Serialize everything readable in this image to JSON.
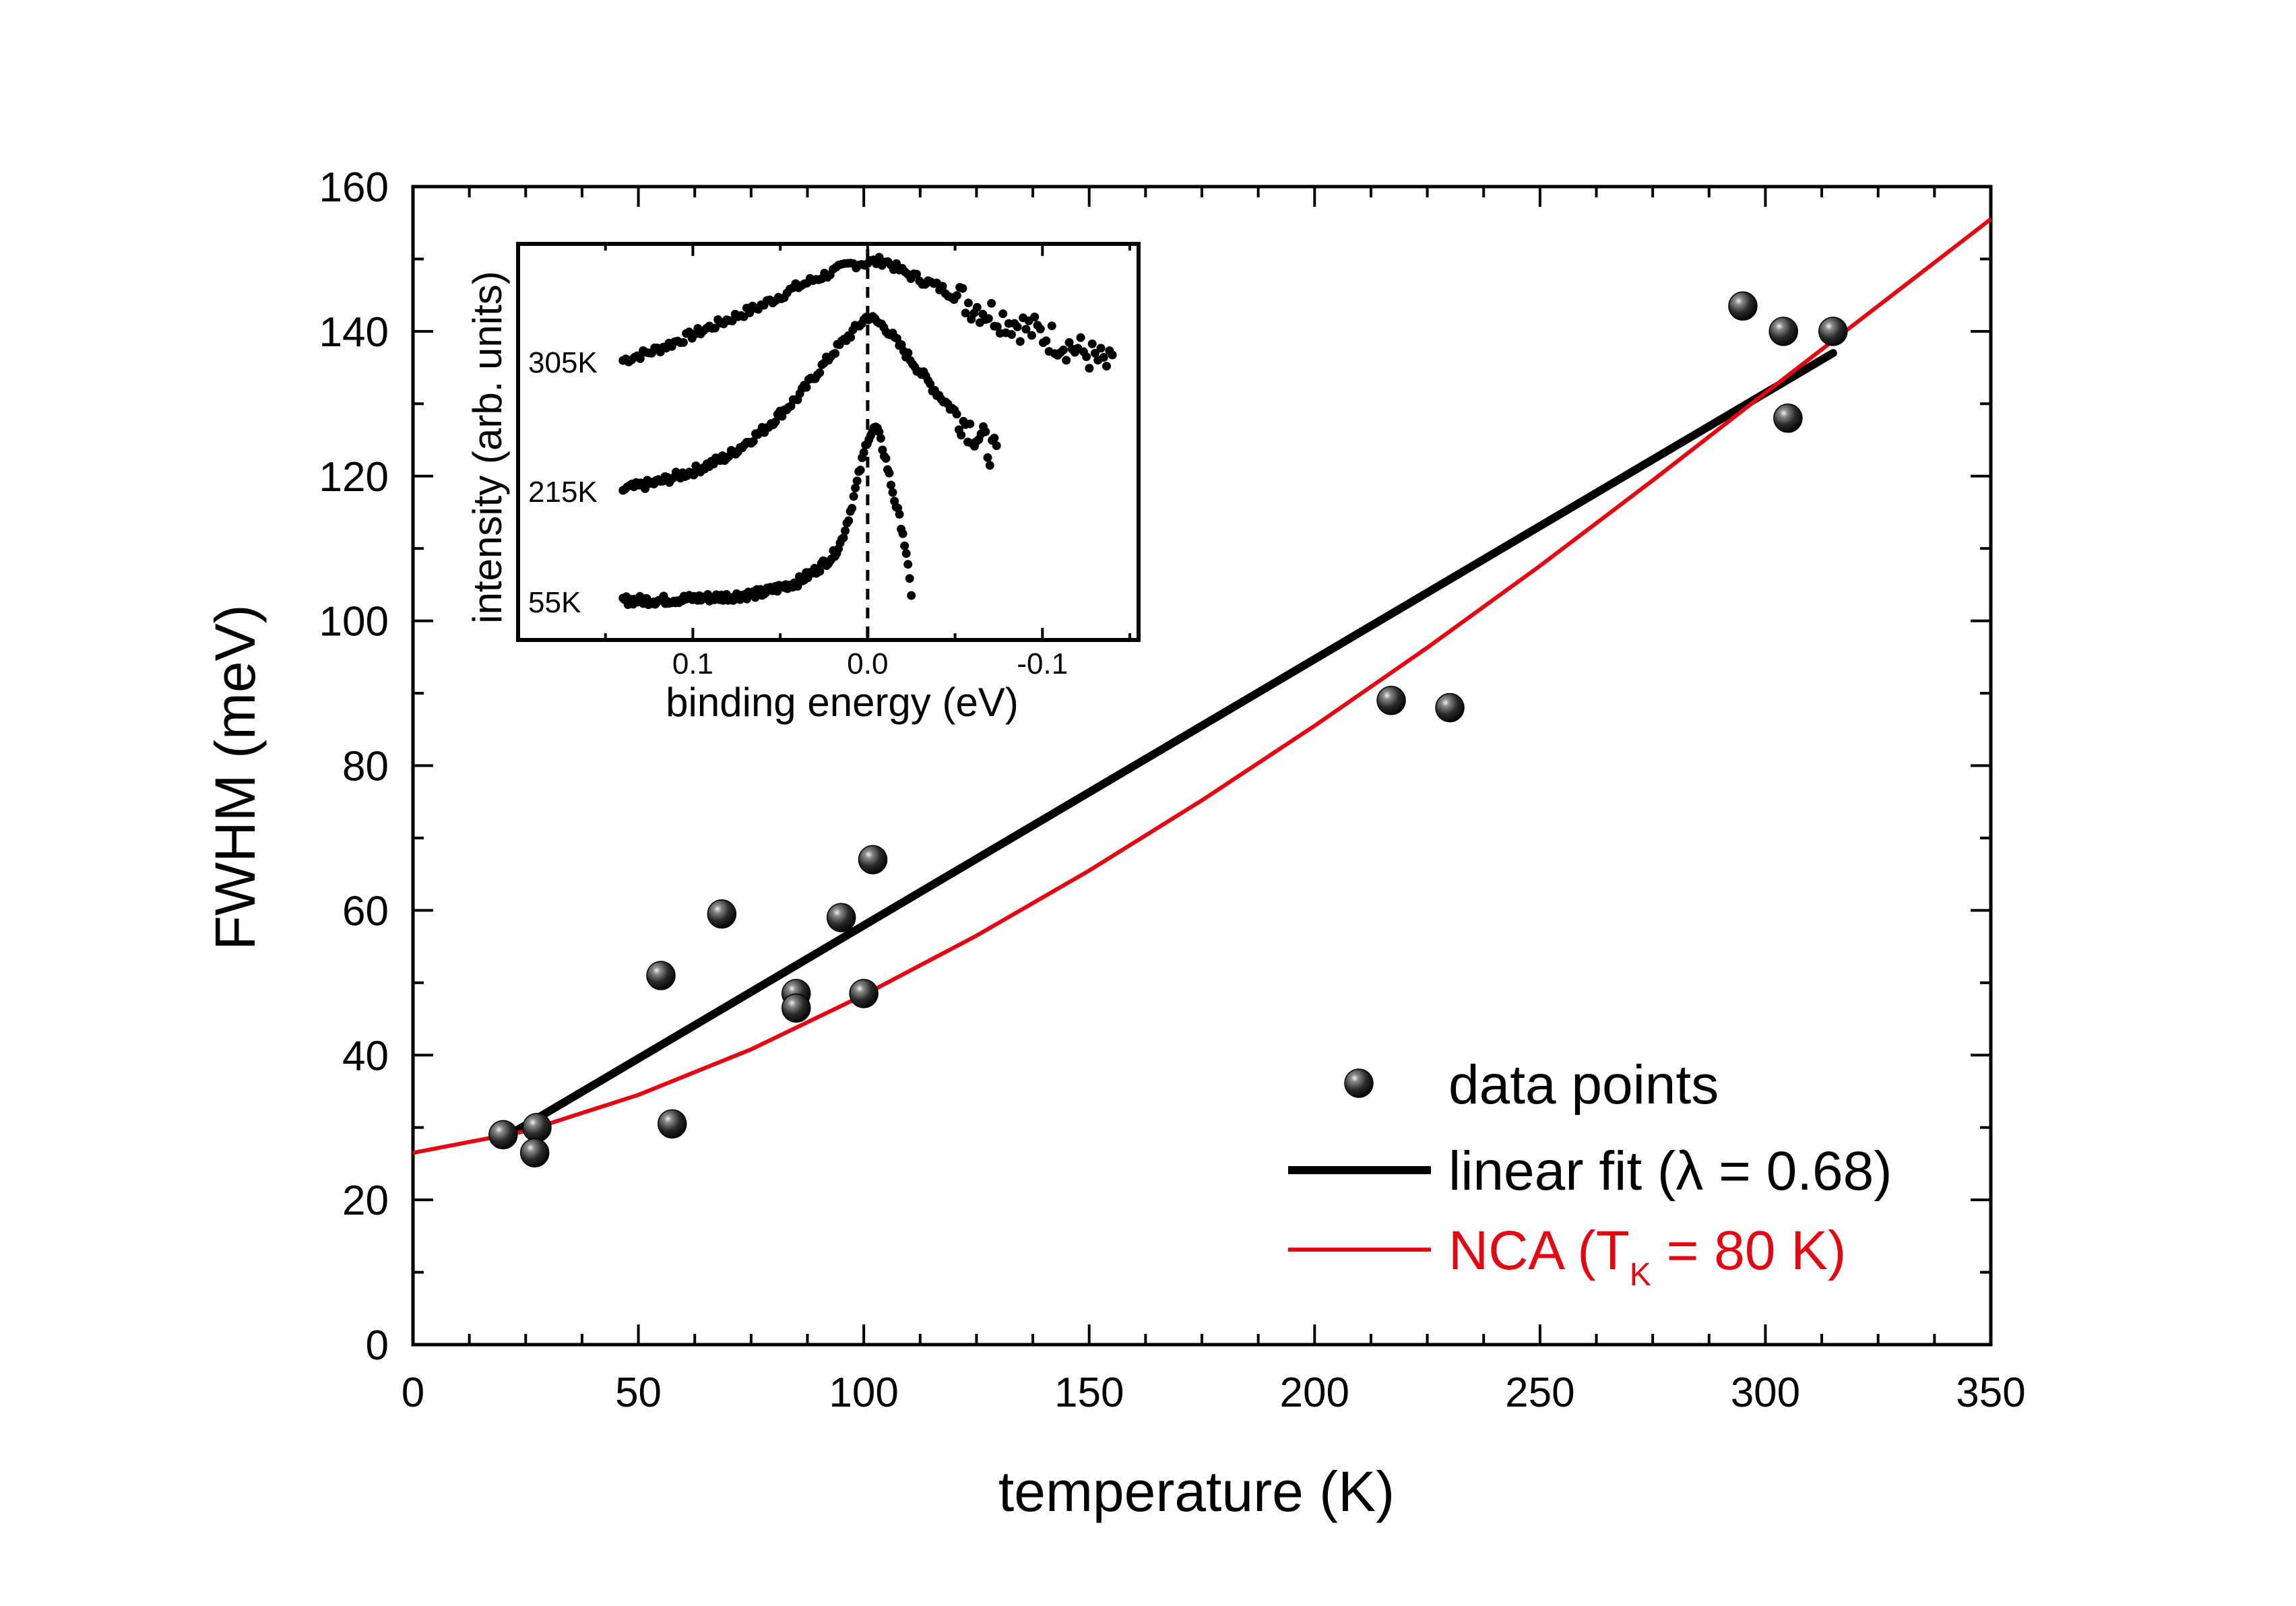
{
  "chart_data": {
    "type": "scatter",
    "xlabel": "temperature (K)",
    "ylabel": "FWHM (meV)",
    "xlim": [
      0,
      350
    ],
    "ylim": [
      0,
      160
    ],
    "xticks": [
      0,
      50,
      100,
      150,
      200,
      250,
      300,
      350
    ],
    "yticks": [
      0,
      20,
      40,
      60,
      80,
      100,
      120,
      140,
      160
    ],
    "xtick_labels": [
      "0",
      "50",
      "100",
      "150",
      "200",
      "250",
      "300",
      "350"
    ],
    "ytick_labels": [
      "0",
      "20",
      "40",
      "60",
      "80",
      "100",
      "120",
      "140",
      "160"
    ],
    "grid": false,
    "legend_position": "bottom-right",
    "series": [
      {
        "name": "data points",
        "kind": "points",
        "color": "#111111",
        "x": [
          20,
          27.5,
          27,
          55,
          57.5,
          68.5,
          85,
          85,
          95,
          100,
          102,
          217,
          230,
          295,
          304,
          305,
          315
        ],
        "y": [
          29,
          30,
          26.5,
          51,
          30.5,
          59.5,
          48.5,
          46.5,
          59,
          48.5,
          67,
          89,
          88,
          143.5,
          140,
          128,
          140
        ]
      },
      {
        "name": "linear fit",
        "name_suffix": "(λ = 0.68)",
        "kind": "line",
        "color": "#000000",
        "x": [
          20,
          315
        ],
        "y": [
          28.5,
          137
        ]
      },
      {
        "name": "NCA",
        "name_suffix_parts": [
          "(T",
          "K",
          " = 80 K)"
        ],
        "kind": "curve",
        "color": "#e30613",
        "x": [
          0,
          25,
          50,
          75,
          100,
          125,
          150,
          175,
          200,
          225,
          250,
          275,
          300,
          325,
          350
        ],
        "y": [
          26.5,
          29.5,
          34.5,
          40.8,
          48.3,
          56.5,
          65.5,
          75.2,
          85.5,
          96.3,
          107.6,
          119.4,
          131.5,
          143.5,
          155.5
        ]
      }
    ],
    "legend": {
      "items": [
        {
          "label": "data points",
          "color": "#000000"
        },
        {
          "label": "linear fit (λ = 0.68)",
          "color": "#000000"
        },
        {
          "label_main": "NCA (T",
          "label_sub": "K",
          "label_tail": " = 80 K)",
          "color": "#e30613"
        }
      ]
    },
    "inset": {
      "type": "scatter",
      "xlabel": "binding energy (eV)",
      "ylabel": "intensity (arb. units)",
      "xlim": [
        0.2,
        -0.155
      ],
      "xticks": [
        0.1,
        0.0,
        -0.1
      ],
      "xtick_labels": [
        "0.1",
        "0.0",
        "-0.1"
      ],
      "vline_x": 0.0,
      "series": [
        {
          "name": "305K",
          "x": [
            0.14,
            0.12,
            0.1,
            0.08,
            0.06,
            0.04,
            0.02,
            0.01,
            0.0,
            -0.01,
            -0.02,
            -0.04,
            -0.06,
            -0.08,
            -0.1,
            -0.12,
            -0.14
          ],
          "y": [
            0.73,
            0.76,
            0.8,
            0.84,
            0.88,
            0.93,
            0.97,
            0.99,
            0.995,
            1.0,
            0.97,
            0.93,
            0.88,
            0.84,
            0.8,
            0.76,
            0.71
          ]
        },
        {
          "name": "215K",
          "x": [
            0.14,
            0.12,
            0.1,
            0.08,
            0.06,
            0.04,
            0.02,
            0.01,
            0.0,
            -0.01,
            -0.02,
            -0.03,
            -0.04,
            -0.05,
            -0.06,
            -0.07,
            -0.075
          ],
          "y": [
            0.38,
            0.4,
            0.43,
            0.47,
            0.54,
            0.63,
            0.75,
            0.8,
            0.85,
            0.82,
            0.76,
            0.7,
            0.64,
            0.59,
            0.54,
            0.49,
            0.46
          ]
        },
        {
          "name": "55K",
          "x": [
            0.14,
            0.12,
            0.1,
            0.08,
            0.06,
            0.04,
            0.03,
            0.02,
            0.015,
            0.01,
            0.005,
            0.0,
            -0.005,
            -0.01,
            -0.015,
            -0.02,
            -0.025
          ],
          "y": [
            0.08,
            0.08,
            0.085,
            0.09,
            0.1,
            0.13,
            0.16,
            0.2,
            0.24,
            0.32,
            0.42,
            0.52,
            0.55,
            0.47,
            0.36,
            0.27,
            0.1
          ]
        }
      ]
    }
  }
}
